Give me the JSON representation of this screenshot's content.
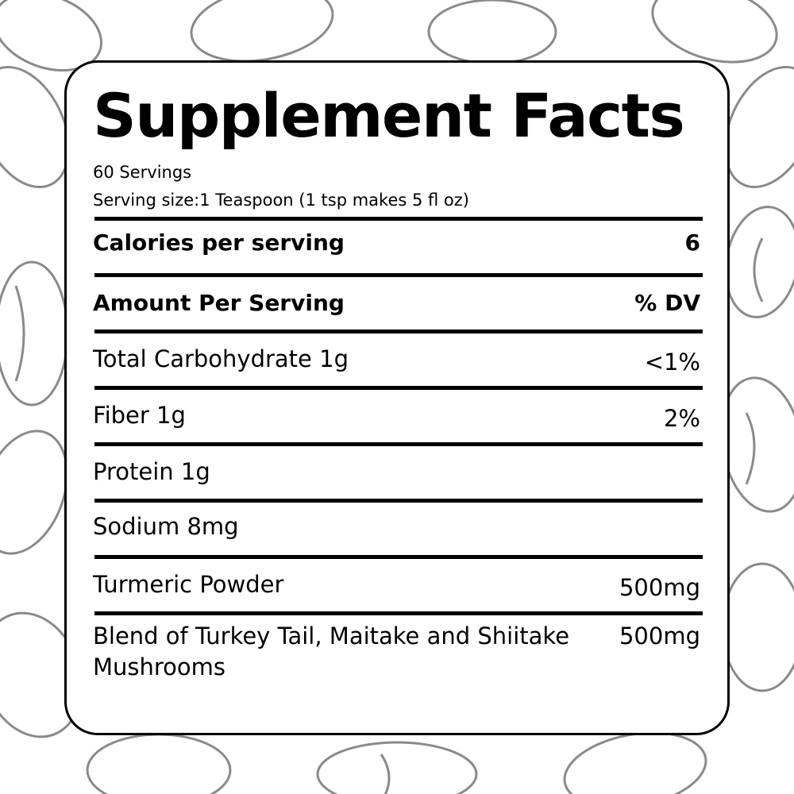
{
  "label": {
    "title": "Supplement Facts",
    "servings": "60 Servings",
    "serving_size": "Serving size:1 Teaspoon (1 tsp makes 5 fl oz)",
    "calories": {
      "label": "Calories per serving",
      "value": "6"
    },
    "header": {
      "label": "Amount Per Serving",
      "value": "% DV"
    },
    "rows": [
      {
        "label": "Total Carbohydrate 1g",
        "value": "<1%"
      },
      {
        "label": "Fiber 1g",
        "value": "2%"
      },
      {
        "label": "Protein 1g",
        "value": ""
      },
      {
        "label": "Sodium 8mg",
        "value": ""
      },
      {
        "label": "Turmeric Powder",
        "value": "500mg"
      },
      {
        "label": "Blend of Turkey Tail, Maitake and Shiitake",
        "label_line2": "Mushrooms",
        "value": "500mg"
      }
    ]
  },
  "background": {
    "motif": "sketched coffee beans and mushrooms",
    "stroke_color": "#8a8a8a"
  }
}
